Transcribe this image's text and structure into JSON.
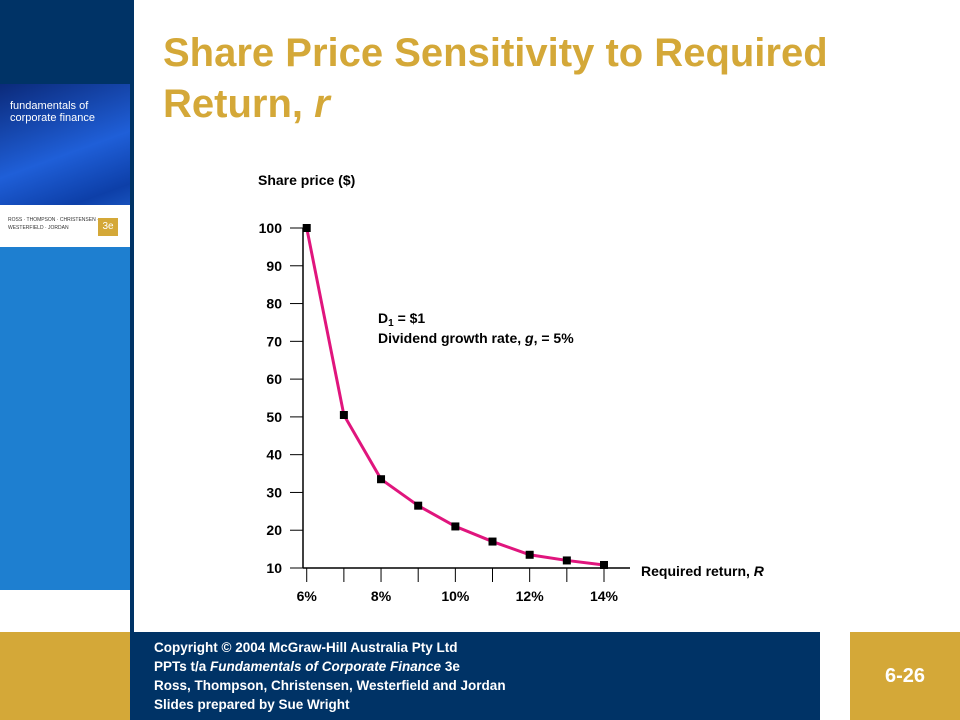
{
  "slide": {
    "cover": {
      "title_lines": [
        "fundamentals of",
        "corporate finance"
      ],
      "authors_lines": [
        "ROSS · THOMPSON · CHRISTENSEN ·",
        "WESTERFIELD · JORDAN"
      ],
      "edition": "3e"
    },
    "footer": {
      "lines": [
        [
          "Copyright © 2004 McGraw-Hill Australia Pty Ltd"
        ],
        [
          "PPTs t/a ",
          "Fundamentals of Corporate Finance",
          " 3e"
        ],
        [
          "Ross, Thompson, Christensen, Westerfield and Jordan"
        ],
        [
          "Slides prepared by Sue Wright"
        ]
      ],
      "slide_number": "6-26"
    }
  },
  "chart_data": {
    "type": "line",
    "title_parts": [
      "Share Price Sensitivity to Required",
      "Return, ",
      "r"
    ],
    "y_label": "Share price ($)",
    "x_label_parts": [
      "Required return, ",
      "R"
    ],
    "annotations": [
      [
        "D",
        "1",
        " = $1"
      ],
      [
        "Dividend growth rate, ",
        "g",
        ", = 5%"
      ]
    ],
    "x": [
      6,
      7,
      8,
      9,
      10,
      11,
      12,
      13,
      14
    ],
    "series": [
      {
        "color": "#e0157d",
        "marker_color": "#000000",
        "values": [
          100,
          50.5,
          33.5,
          26.5,
          21,
          17,
          13.5,
          12,
          10.8
        ]
      }
    ],
    "xlim": [
      5.9,
      14.7
    ],
    "xticks": [
      {
        "value": 6,
        "label": "6%"
      },
      {
        "value": 8,
        "label": "8%"
      },
      {
        "value": 10,
        "label": "10%"
      },
      {
        "value": 12,
        "label": "12%"
      },
      {
        "value": 14,
        "label": "14%"
      }
    ],
    "xminorticks": [
      7,
      9,
      11,
      13
    ],
    "ylim": [
      10,
      100
    ],
    "yticks": [
      10,
      20,
      30,
      40,
      50,
      60,
      70,
      80,
      90,
      100
    ]
  }
}
